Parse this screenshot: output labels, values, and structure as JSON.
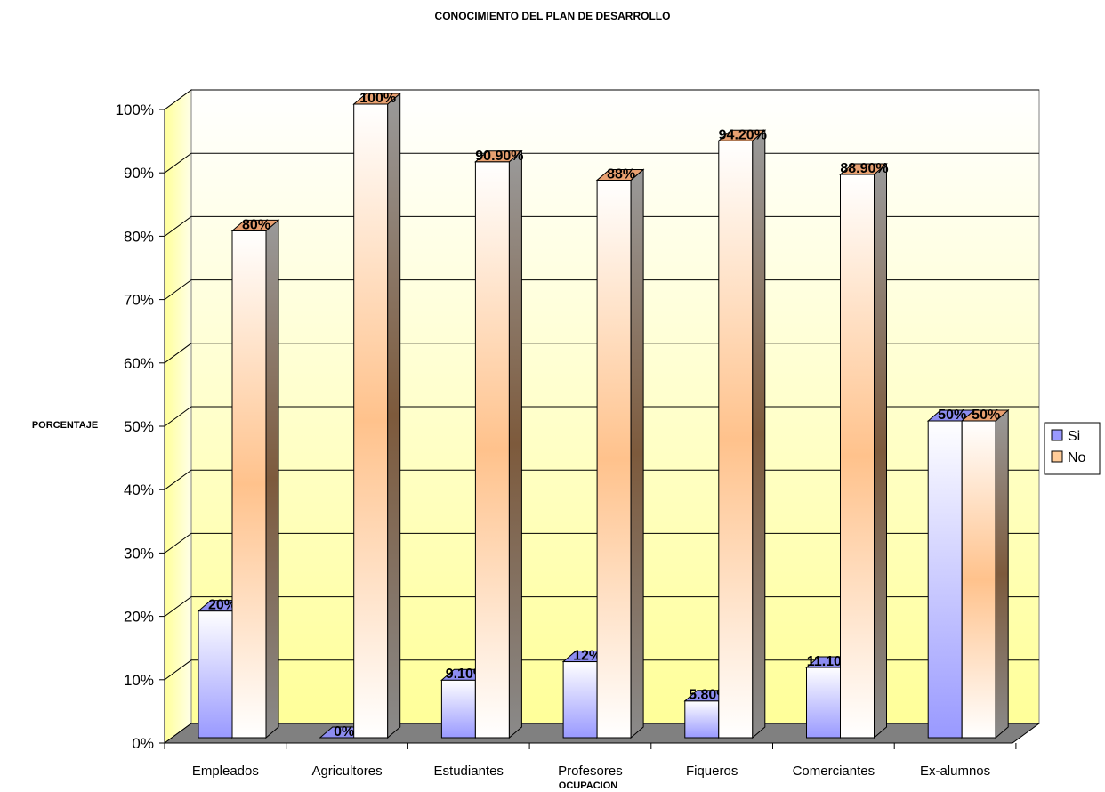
{
  "chart_data": {
    "type": "bar",
    "title": "CONOCIMIENTO DEL PLAN DE DESARROLLO",
    "xlabel": "OCUPACION",
    "ylabel": "PORCENTAJE",
    "ylim": [
      0,
      100
    ],
    "yticks": [
      "0%",
      "10%",
      "20%",
      "30%",
      "40%",
      "50%",
      "60%",
      "70%",
      "80%",
      "90%",
      "100%"
    ],
    "categories": [
      "Empleados",
      "Agricultores",
      "Estudiantes",
      "Profesores",
      "Fiqueros",
      "Comerciantes",
      "Ex-alumnos"
    ],
    "series": [
      {
        "name": "Si",
        "values": [
          20,
          0,
          9.1,
          12,
          5.8,
          11.1,
          50
        ],
        "labels": [
          "20%",
          "0%",
          "9.10%",
          "12%",
          "5.80%",
          "11.10%",
          "50%"
        ],
        "color": "#9999ff"
      },
      {
        "name": "No",
        "values": [
          80,
          100,
          90.9,
          88,
          94.2,
          88.9,
          50
        ],
        "labels": [
          "80%",
          "100%",
          "90.90%",
          "88%",
          "94.20%",
          "88.90%",
          "50%"
        ],
        "color": "#ffcc99"
      }
    ],
    "grid": true,
    "legend": "right",
    "three_d": true
  }
}
